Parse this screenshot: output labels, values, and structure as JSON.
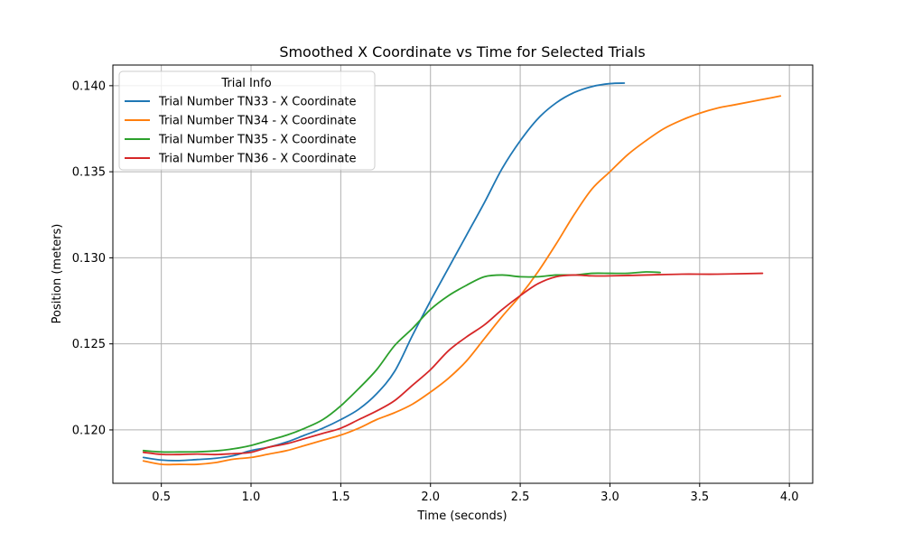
{
  "chart_data": {
    "type": "line",
    "title": "Smoothed X Coordinate vs Time for Selected Trials",
    "xlabel": "Time (seconds)",
    "ylabel": "Position (meters)",
    "xlim": [
      0.23,
      4.13
    ],
    "ylim": [
      0.1169,
      0.1412
    ],
    "xticks": [
      0.5,
      1.0,
      1.5,
      2.0,
      2.5,
      3.0,
      3.5,
      4.0
    ],
    "xtick_labels": [
      "0.5",
      "1.0",
      "1.5",
      "2.0",
      "2.5",
      "3.0",
      "3.5",
      "4.0"
    ],
    "yticks": [
      0.12,
      0.125,
      0.13,
      0.135,
      0.14
    ],
    "ytick_labels": [
      "0.120",
      "0.125",
      "0.130",
      "0.135",
      "0.140"
    ],
    "grid": true,
    "legend": {
      "title": "Trial Info",
      "placement": "top-left"
    },
    "series": [
      {
        "name": "Trial Number TN33 - X Coordinate",
        "color": "#1f77b4",
        "points": [
          [
            0.4,
            0.1184
          ],
          [
            0.5,
            0.11825
          ],
          [
            0.6,
            0.11822
          ],
          [
            0.7,
            0.11828
          ],
          [
            0.8,
            0.11835
          ],
          [
            0.9,
            0.1185
          ],
          [
            1.0,
            0.1188
          ],
          [
            1.1,
            0.119
          ],
          [
            1.2,
            0.1193
          ],
          [
            1.3,
            0.1197
          ],
          [
            1.4,
            0.1201
          ],
          [
            1.5,
            0.1206
          ],
          [
            1.6,
            0.1212
          ],
          [
            1.7,
            0.1221
          ],
          [
            1.8,
            0.1234
          ],
          [
            1.9,
            0.1255
          ],
          [
            2.0,
            0.1275
          ],
          [
            2.1,
            0.1294
          ],
          [
            2.2,
            0.1313
          ],
          [
            2.3,
            0.1332
          ],
          [
            2.4,
            0.1352
          ],
          [
            2.5,
            0.1368
          ],
          [
            2.6,
            0.1381
          ],
          [
            2.7,
            0.139
          ],
          [
            2.8,
            0.1396
          ],
          [
            2.9,
            0.13995
          ],
          [
            3.0,
            0.14012
          ],
          [
            3.08,
            0.14015
          ]
        ]
      },
      {
        "name": "Trial Number TN34 - X Coordinate",
        "color": "#ff7f0e",
        "points": [
          [
            0.4,
            0.1182
          ],
          [
            0.5,
            0.118
          ],
          [
            0.6,
            0.118
          ],
          [
            0.7,
            0.118
          ],
          [
            0.8,
            0.1181
          ],
          [
            0.9,
            0.1183
          ],
          [
            1.0,
            0.1184
          ],
          [
            1.1,
            0.1186
          ],
          [
            1.2,
            0.1188
          ],
          [
            1.3,
            0.1191
          ],
          [
            1.4,
            0.1194
          ],
          [
            1.5,
            0.1197
          ],
          [
            1.6,
            0.1201
          ],
          [
            1.7,
            0.1206
          ],
          [
            1.8,
            0.121
          ],
          [
            1.9,
            0.1215
          ],
          [
            2.0,
            0.1222
          ],
          [
            2.1,
            0.123
          ],
          [
            2.2,
            0.124
          ],
          [
            2.3,
            0.1253
          ],
          [
            2.4,
            0.1266
          ],
          [
            2.5,
            0.1278
          ],
          [
            2.6,
            0.1292
          ],
          [
            2.7,
            0.1308
          ],
          [
            2.8,
            0.1325
          ],
          [
            2.9,
            0.134
          ],
          [
            3.0,
            0.135
          ],
          [
            3.1,
            0.136
          ],
          [
            3.2,
            0.1368
          ],
          [
            3.3,
            0.1375
          ],
          [
            3.4,
            0.138
          ],
          [
            3.5,
            0.1384
          ],
          [
            3.6,
            0.1387
          ],
          [
            3.7,
            0.1389
          ],
          [
            3.8,
            0.1391
          ],
          [
            3.9,
            0.1393
          ],
          [
            3.95,
            0.1394
          ]
        ]
      },
      {
        "name": "Trial Number TN35 - X Coordinate",
        "color": "#2ca02c",
        "points": [
          [
            0.4,
            0.1188
          ],
          [
            0.5,
            0.11872
          ],
          [
            0.6,
            0.11872
          ],
          [
            0.7,
            0.11873
          ],
          [
            0.8,
            0.11878
          ],
          [
            0.9,
            0.1189
          ],
          [
            1.0,
            0.1191
          ],
          [
            1.1,
            0.1194
          ],
          [
            1.2,
            0.1197
          ],
          [
            1.3,
            0.1201
          ],
          [
            1.4,
            0.1206
          ],
          [
            1.5,
            0.1214
          ],
          [
            1.6,
            0.1224
          ],
          [
            1.7,
            0.1235
          ],
          [
            1.8,
            0.1249
          ],
          [
            1.9,
            0.1259
          ],
          [
            2.0,
            0.127
          ],
          [
            2.1,
            0.1278
          ],
          [
            2.2,
            0.1284
          ],
          [
            2.3,
            0.1289
          ],
          [
            2.4,
            0.129
          ],
          [
            2.5,
            0.1289
          ],
          [
            2.6,
            0.1289
          ],
          [
            2.7,
            0.129
          ],
          [
            2.8,
            0.129
          ],
          [
            2.9,
            0.1291
          ],
          [
            3.0,
            0.1291
          ],
          [
            3.1,
            0.1291
          ],
          [
            3.2,
            0.12918
          ],
          [
            3.28,
            0.12915
          ]
        ]
      },
      {
        "name": "Trial Number TN36 - X Coordinate",
        "color": "#d62728",
        "points": [
          [
            0.4,
            0.1187
          ],
          [
            0.5,
            0.11858
          ],
          [
            0.6,
            0.11857
          ],
          [
            0.7,
            0.1186
          ],
          [
            0.8,
            0.11857
          ],
          [
            0.9,
            0.11862
          ],
          [
            1.0,
            0.1187
          ],
          [
            1.1,
            0.119
          ],
          [
            1.2,
            0.1192
          ],
          [
            1.3,
            0.1195
          ],
          [
            1.4,
            0.1198
          ],
          [
            1.5,
            0.1201
          ],
          [
            1.6,
            0.1206
          ],
          [
            1.7,
            0.1211
          ],
          [
            1.8,
            0.1217
          ],
          [
            1.9,
            0.1226
          ],
          [
            2.0,
            0.1235
          ],
          [
            2.1,
            0.1246
          ],
          [
            2.2,
            0.1254
          ],
          [
            2.3,
            0.1261
          ],
          [
            2.4,
            0.127
          ],
          [
            2.5,
            0.1278
          ],
          [
            2.6,
            0.1285
          ],
          [
            2.7,
            0.1289
          ],
          [
            2.8,
            0.129
          ],
          [
            2.9,
            0.12895
          ],
          [
            3.0,
            0.12895
          ],
          [
            3.2,
            0.129
          ],
          [
            3.4,
            0.12905
          ],
          [
            3.6,
            0.12905
          ],
          [
            3.85,
            0.1291
          ]
        ]
      }
    ]
  }
}
